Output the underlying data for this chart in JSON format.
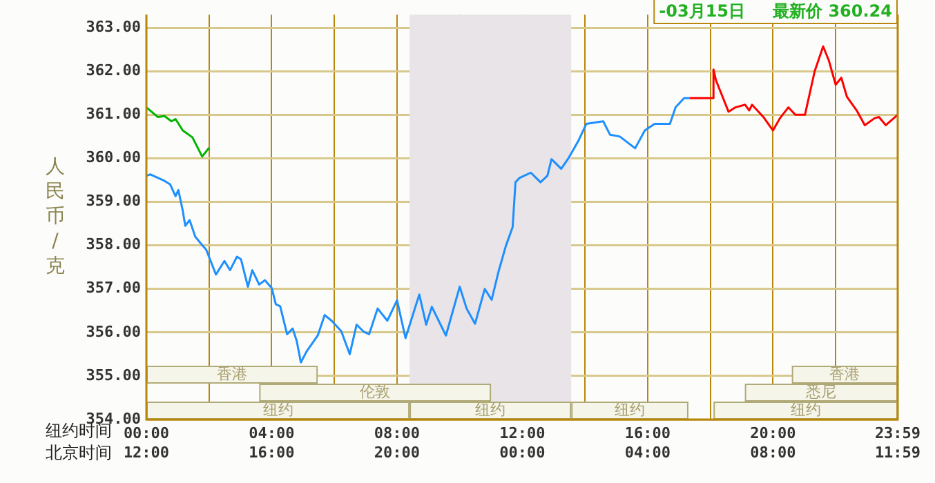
{
  "chart_data": {
    "type": "line",
    "xlabel": "纽约时间",
    "x2label": "北京时间",
    "ylabel": "人民币/克",
    "xlim": [
      0,
      23.98
    ],
    "x2lim": [
      "--03-14T12:00",
      "--03-15T11:59"
    ],
    "xticks": [
      {
        "value": 0,
        "label": "00:00"
      },
      {
        "value": 2,
        "label": null
      },
      {
        "value": 4,
        "label": "04:00"
      },
      {
        "value": 6,
        "label": null
      },
      {
        "value": 8,
        "label": "08:00"
      },
      {
        "value": 10,
        "label": null
      },
      {
        "value": 12,
        "label": "12:00"
      },
      {
        "value": 14,
        "label": null
      },
      {
        "value": 16,
        "label": "16:00"
      },
      {
        "value": 18,
        "label": null
      },
      {
        "value": 20,
        "label": "20:00"
      },
      {
        "value": 22,
        "label": null
      },
      {
        "value": 23.98,
        "label": "23:59"
      }
    ],
    "x2ticks": [
      {
        "value": "--03-14T12:00",
        "label": "12:00"
      },
      {
        "value": "--03-14T16:00",
        "label": "16:00"
      },
      {
        "value": "--03-14T20:00",
        "label": "20:00"
      },
      {
        "value": "--03-15T00:00",
        "label": "00:00"
      },
      {
        "value": "--03-15T04:00",
        "label": "04:00"
      },
      {
        "value": "--03-15T08:00",
        "label": "08:00"
      },
      {
        "value": "--03-15T11:59",
        "label": "11:59"
      }
    ],
    "ylim": [
      354,
      363.3
    ],
    "yticks": [
      {
        "value": 354,
        "label": "354.00"
      },
      {
        "value": 355,
        "label": "355.00"
      },
      {
        "value": 356,
        "label": "356.00"
      },
      {
        "value": 357,
        "label": "357.00"
      },
      {
        "value": 358,
        "label": "358.00"
      },
      {
        "value": 359,
        "label": "359.00"
      },
      {
        "value": 360,
        "label": "360.00"
      },
      {
        "value": 361,
        "label": "361.00"
      },
      {
        "value": 362,
        "label": "362.00"
      },
      {
        "value": 363,
        "label": "363.00"
      }
    ],
    "grid": true,
    "marker": "none",
    "series": [
      {
        "color": "#1e8fff",
        "x": [
          0,
          0.13,
          0.58,
          0.76,
          0.93,
          1.02,
          1.16,
          1.24,
          1.38,
          1.56,
          1.73,
          1.91,
          2.22,
          2.49,
          2.67,
          2.89,
          3.02,
          3.24,
          3.38,
          3.6,
          3.78,
          4.0,
          4.13,
          4.27,
          4.49,
          4.67,
          4.8,
          4.93,
          5.11,
          5.47,
          5.69,
          5.91,
          6.22,
          6.49,
          6.71,
          6.93,
          7.11,
          7.38,
          7.69,
          8.0,
          8.27,
          8.71,
          8.93,
          9.11,
          9.56,
          10.0,
          10.22,
          10.49,
          10.8,
          11.02,
          11.24,
          11.47,
          11.69,
          11.78,
          11.91,
          12.27,
          12.58,
          12.8,
          12.93,
          13.24,
          13.47,
          13.78,
          14.04,
          14.58,
          14.8,
          15.11,
          15.6,
          15.91,
          16.22,
          16.71,
          16.89,
          17.16,
          17.33
        ],
        "values": [
          359.6,
          359.63,
          359.48,
          359.4,
          359.13,
          359.27,
          358.8,
          358.45,
          358.58,
          358.2,
          358.05,
          357.9,
          357.33,
          357.64,
          357.43,
          357.74,
          357.68,
          357.05,
          357.43,
          357.1,
          357.2,
          357.02,
          356.65,
          356.6,
          355.96,
          356.09,
          355.8,
          355.31,
          355.56,
          355.93,
          356.4,
          356.27,
          356.03,
          355.5,
          356.18,
          356.02,
          355.96,
          356.55,
          356.27,
          356.74,
          355.87,
          356.87,
          356.18,
          356.59,
          355.93,
          357.05,
          356.55,
          356.2,
          357.0,
          356.75,
          357.4,
          357.98,
          358.42,
          359.45,
          359.55,
          359.67,
          359.45,
          359.6,
          359.98,
          359.76,
          360.0,
          360.39,
          360.79,
          360.85,
          360.54,
          360.5,
          360.23,
          360.64,
          360.79,
          360.79,
          361.17,
          361.38,
          361.38
        ]
      },
      {
        "color": "#ff0000",
        "x": [
          17.33,
          18.09,
          18.1,
          18.18,
          18.58,
          18.8,
          19.11,
          19.24,
          19.33,
          19.69,
          20.0,
          20.22,
          20.49,
          20.71,
          21.02,
          21.33,
          21.6,
          21.78,
          22.0,
          22.18,
          22.36,
          22.67,
          22.93,
          23.24,
          23.38,
          23.6,
          23.98
        ],
        "values": [
          361.38,
          361.38,
          362.04,
          361.79,
          361.07,
          361.17,
          361.23,
          361.1,
          361.23,
          360.95,
          360.64,
          360.92,
          361.17,
          361.0,
          361.0,
          362.0,
          362.57,
          362.25,
          361.69,
          361.85,
          361.41,
          361.1,
          360.76,
          360.92,
          360.95,
          360.76,
          361.0
        ]
      },
      {
        "color": "#00b400",
        "x": [
          0,
          0.36,
          0.58,
          0.8,
          0.93,
          1.16,
          1.47,
          1.78,
          2.0
        ],
        "values": [
          361.17,
          360.95,
          360.97,
          360.85,
          360.9,
          360.64,
          360.48,
          360.04,
          360.24
        ]
      }
    ],
    "bands": [
      {
        "axis": "x",
        "from": 8.4,
        "to": 13.56,
        "color": "#e8e4e8"
      },
      {
        "axis": "x",
        "from": 0,
        "to": 8.4,
        "label": "纽约"
      },
      {
        "axis": "x",
        "from": 8.4,
        "to": 13.56,
        "label": "纽约"
      },
      {
        "axis": "x",
        "from": 13.56,
        "to": 17.3,
        "label": "纽约"
      },
      {
        "axis": "x",
        "from": 18.1,
        "to": 23.98,
        "label": "纽约"
      },
      {
        "axis": "x",
        "from": 3.6,
        "to": 11.0,
        "label": "伦敦"
      },
      {
        "axis": "x",
        "from": 19.1,
        "to": 23.98,
        "label": "悉尼"
      },
      {
        "axis": "x",
        "from": 0,
        "to": 5.47,
        "label": "香港"
      },
      {
        "axis": "x",
        "from": 20.6,
        "to": 23.98,
        "label": "香港"
      }
    ],
    "annotations": [
      "-03月15日",
      "最新价 360.24"
    ]
  }
}
